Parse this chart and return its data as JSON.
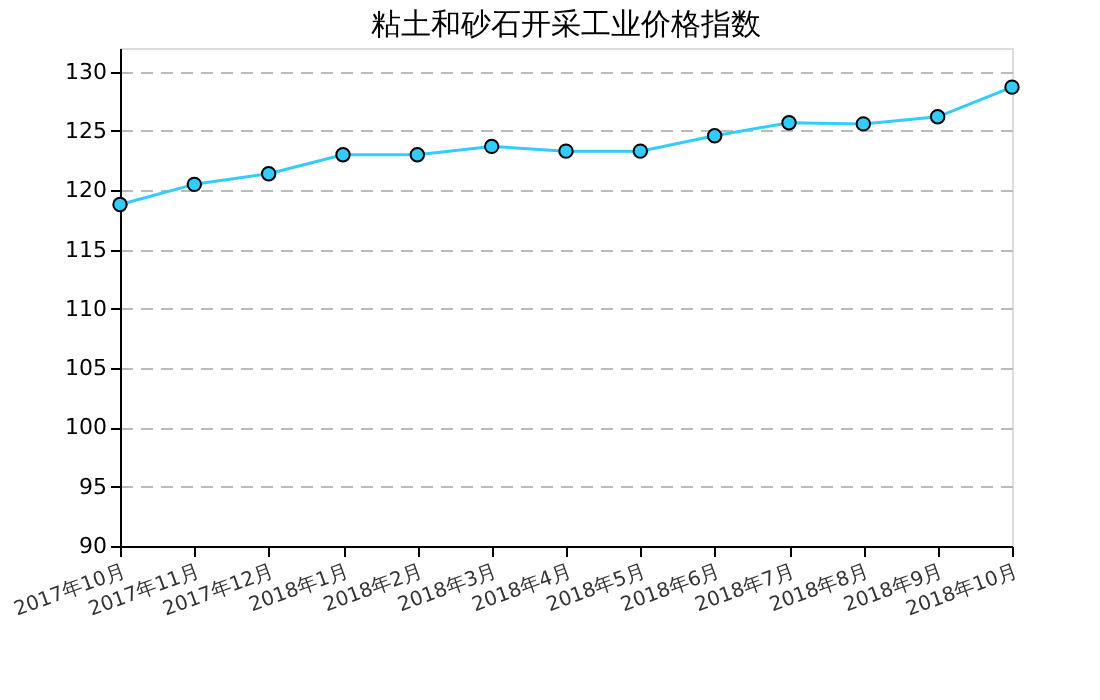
{
  "chart_data": {
    "type": "line",
    "title": "粘土和砂石开采工业价格指数",
    "categories": [
      "2017年10月",
      "2017年11月",
      "2017年12月",
      "2018年1月",
      "2018年2月",
      "2018年3月",
      "2018年4月",
      "2018年5月",
      "2018年6月",
      "2018年7月",
      "2018年8月",
      "2018年9月",
      "2018年10月"
    ],
    "series": [
      {
        "color": "#33ccff",
        "values": [
          118.8,
          120.5,
          121.4,
          123.0,
          123.0,
          123.7,
          123.3,
          123.3,
          124.6,
          125.7,
          125.6,
          126.2,
          128.7
        ]
      }
    ],
    "ylim": [
      90,
      132
    ],
    "yticks": [
      90,
      95,
      100,
      105,
      110,
      115,
      120,
      125,
      130
    ],
    "grid": "y",
    "marker": "circle",
    "line_style": "solid",
    "legend": false
  }
}
